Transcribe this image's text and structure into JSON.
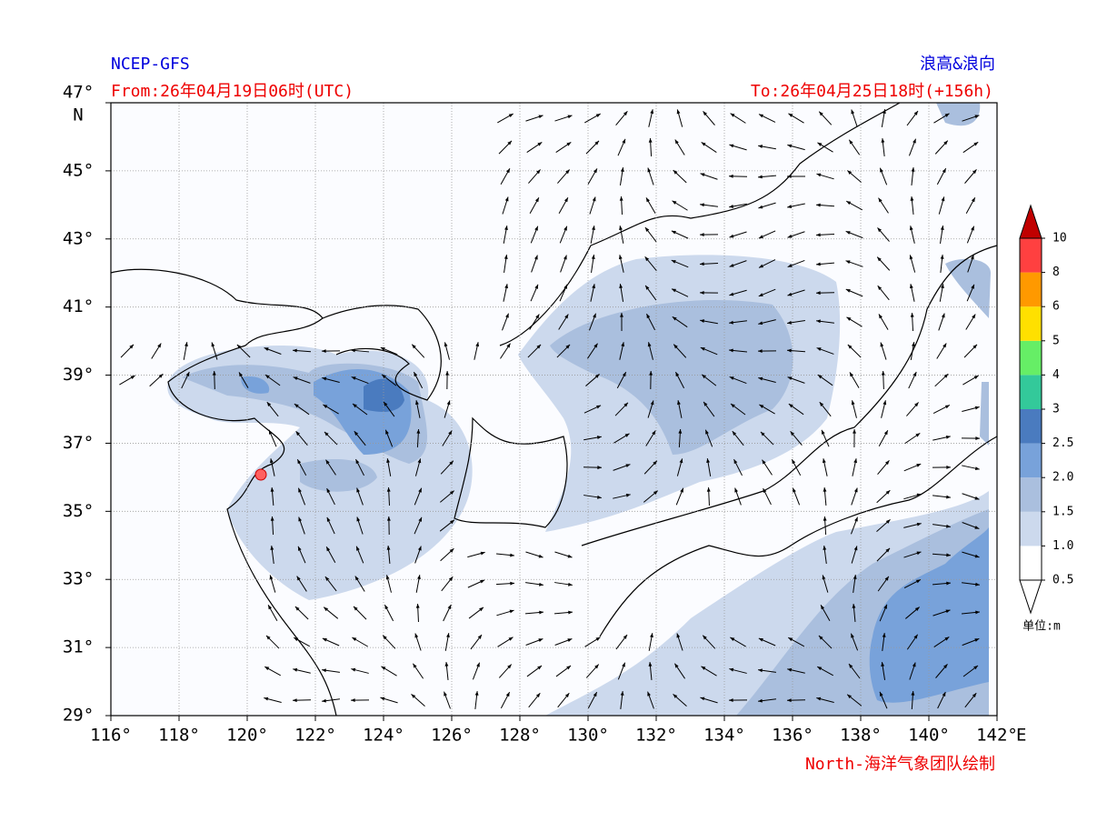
{
  "header": {
    "source": "NCEP-GFS",
    "product": "浪高&浪向",
    "from": "From:26年04月19日06时(UTC)",
    "to": "To:26年04月25日18时(+156h)"
  },
  "axes": {
    "x_ticks": [
      "116°",
      "118°",
      "120°",
      "122°",
      "124°",
      "126°",
      "128°",
      "130°",
      "132°",
      "134°",
      "136°",
      "138°",
      "140°",
      "142°"
    ],
    "x_unit": "E",
    "y_ticks": [
      "47°",
      "45°",
      "43°",
      "41°",
      "39°",
      "37°",
      "35°",
      "33°",
      "31°",
      "29°"
    ],
    "y_unit": "N"
  },
  "colorbar": {
    "labels": [
      "0.5",
      "1.0",
      "1.5",
      "2.0",
      "2.5",
      "3",
      "4",
      "5",
      "6",
      "8",
      "10"
    ],
    "colors": [
      "#ffffff",
      "#ccd9ed",
      "#aabfde",
      "#78a2da",
      "#4a7bbf",
      "#33c99a",
      "#66ee66",
      "#ffe000",
      "#ff9900",
      "#ff4040"
    ],
    "extend_color": "#c00000",
    "unit": "单位:m"
  },
  "credit": "North-海洋气象团队绘制"
}
